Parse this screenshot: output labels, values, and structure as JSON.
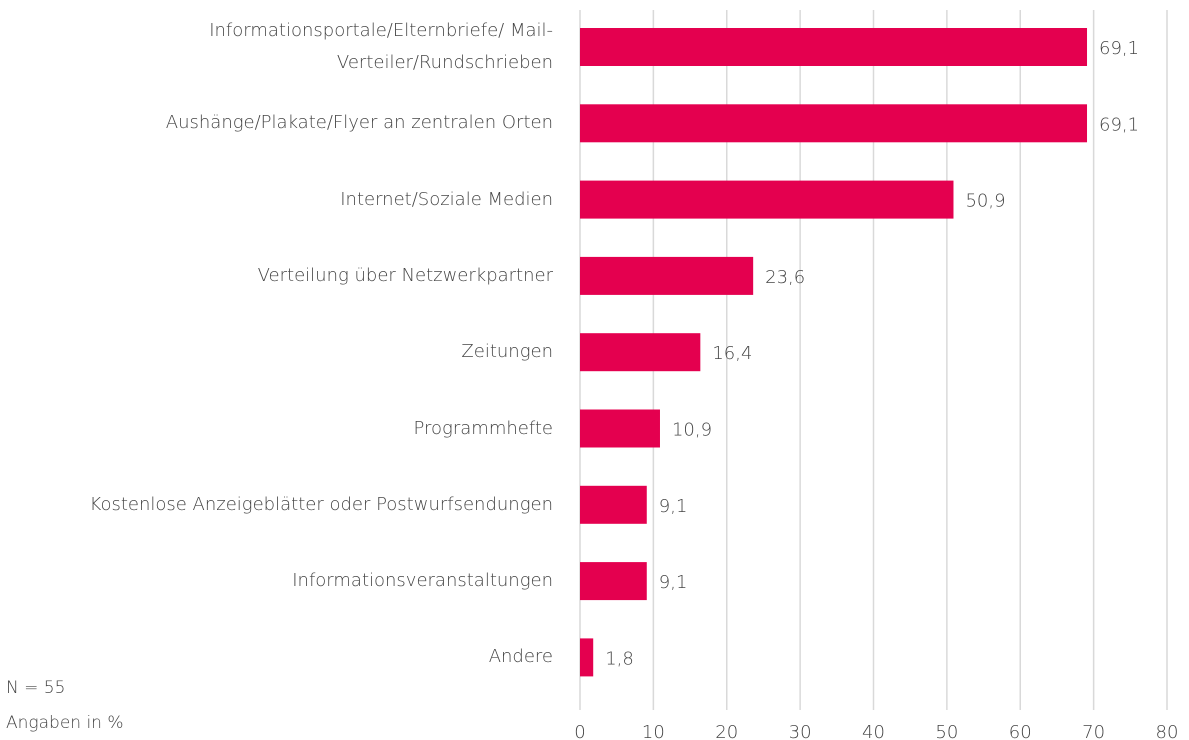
{
  "chart_data": {
    "type": "bar",
    "orientation": "horizontal",
    "categories": [
      "Informationsportale/Elternbriefe/ Mail-Verteiler/Rundschrieben",
      "Aushänge/Plakate/Flyer an zentralen Orten",
      "Internet/Soziale Medien",
      "Verteilung über Netzwerkpartner",
      "Zeitungen",
      "Programmhefte",
      "Kostenlose Anzeigeblätter oder Postwurfsendungen",
      "Informationsveranstaltungen",
      "Andere"
    ],
    "values": [
      69.1,
      69.1,
      50.9,
      23.6,
      16.4,
      10.9,
      9.1,
      9.1,
      1.8
    ],
    "value_labels": [
      "69,1",
      "69,1",
      "50,9",
      "23,6",
      "16,4",
      "10,9",
      "9,1",
      "9,1",
      "1,8"
    ],
    "color": "#e4004f",
    "xlim": [
      0,
      80
    ],
    "xticks": [
      0,
      10,
      20,
      30,
      40,
      50,
      60,
      70,
      80
    ],
    "grid": true,
    "notes": [
      "N = 55",
      "Angaben in %"
    ]
  }
}
